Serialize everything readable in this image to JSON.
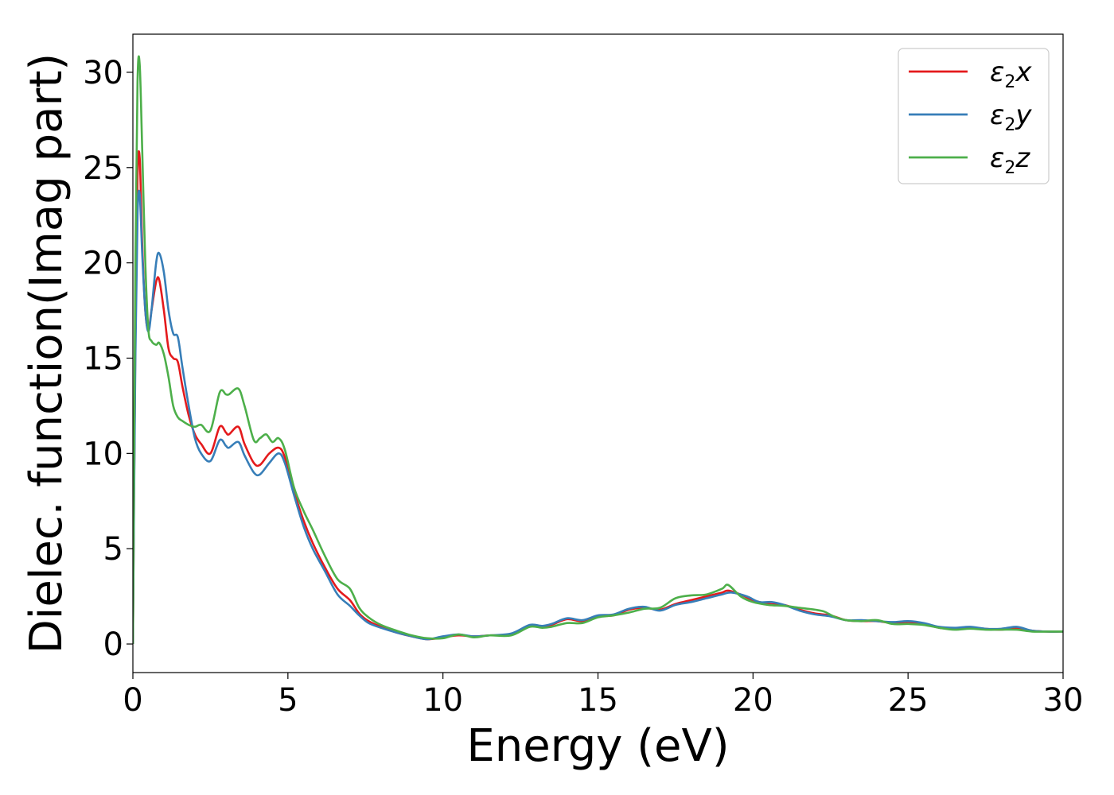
{
  "chart_data": {
    "type": "line",
    "title": "",
    "xlabel": "Energy (eV)",
    "ylabel": "Dielec. function(Imag part)",
    "xlim": [
      0,
      30
    ],
    "ylim": [
      -1.5,
      32
    ],
    "xticks": [
      "0",
      "5",
      "10",
      "15",
      "20",
      "25",
      "30"
    ],
    "yticks": [
      "0",
      "5",
      "10",
      "15",
      "20",
      "25",
      "30"
    ],
    "grid": false,
    "legend_position": "top-right",
    "series": [
      {
        "name": "x",
        "symbol": "ε",
        "subscript": "2",
        "suffix": "x",
        "color": "#e41a1c",
        "points": [
          [
            0,
            0
          ],
          [
            0.08,
            16
          ],
          [
            0.15,
            24.5
          ],
          [
            0.22,
            25.5
          ],
          [
            0.3,
            21
          ],
          [
            0.4,
            17.5
          ],
          [
            0.5,
            16.5
          ],
          [
            0.6,
            17.5
          ],
          [
            0.75,
            19
          ],
          [
            0.85,
            19.1
          ],
          [
            1.0,
            17.5
          ],
          [
            1.15,
            15.5
          ],
          [
            1.3,
            15
          ],
          [
            1.45,
            14.8
          ],
          [
            1.6,
            13.5
          ],
          [
            1.8,
            12
          ],
          [
            2.0,
            11
          ],
          [
            2.2,
            10.5
          ],
          [
            2.5,
            10
          ],
          [
            2.8,
            11.4
          ],
          [
            3.0,
            11.1
          ],
          [
            3.1,
            11
          ],
          [
            3.4,
            11.4
          ],
          [
            3.6,
            10.5
          ],
          [
            3.9,
            9.5
          ],
          [
            4.1,
            9.4
          ],
          [
            4.4,
            10
          ],
          [
            4.7,
            10.3
          ],
          [
            4.9,
            9.8
          ],
          [
            5.2,
            8
          ],
          [
            5.5,
            6.5
          ],
          [
            5.8,
            5.3
          ],
          [
            6.2,
            4
          ],
          [
            6.6,
            2.9
          ],
          [
            7.0,
            2.3
          ],
          [
            7.3,
            1.6
          ],
          [
            7.6,
            1.2
          ],
          [
            8.0,
            0.9
          ],
          [
            8.5,
            0.6
          ],
          [
            9.0,
            0.4
          ],
          [
            9.5,
            0.25
          ],
          [
            10.0,
            0.35
          ],
          [
            10.5,
            0.45
          ],
          [
            11.0,
            0.4
          ],
          [
            11.5,
            0.45
          ],
          [
            12.2,
            0.5
          ],
          [
            12.8,
            0.95
          ],
          [
            13.2,
            0.9
          ],
          [
            13.5,
            1.0
          ],
          [
            14.0,
            1.3
          ],
          [
            14.5,
            1.2
          ],
          [
            15.0,
            1.45
          ],
          [
            15.5,
            1.5
          ],
          [
            16.0,
            1.8
          ],
          [
            16.5,
            1.9
          ],
          [
            17.0,
            1.8
          ],
          [
            17.5,
            2.1
          ],
          [
            18.0,
            2.3
          ],
          [
            18.5,
            2.5
          ],
          [
            19.0,
            2.7
          ],
          [
            19.2,
            2.8
          ],
          [
            19.6,
            2.6
          ],
          [
            20.0,
            2.3
          ],
          [
            20.5,
            2.1
          ],
          [
            21.0,
            2.05
          ],
          [
            21.5,
            1.8
          ],
          [
            22.0,
            1.6
          ],
          [
            22.5,
            1.5
          ],
          [
            23.0,
            1.25
          ],
          [
            23.5,
            1.2
          ],
          [
            24.0,
            1.2
          ],
          [
            24.5,
            1.1
          ],
          [
            25.0,
            1.15
          ],
          [
            25.5,
            1.05
          ],
          [
            26.0,
            0.85
          ],
          [
            26.5,
            0.8
          ],
          [
            27.0,
            0.85
          ],
          [
            27.5,
            0.8
          ],
          [
            28.0,
            0.75
          ],
          [
            28.5,
            0.85
          ],
          [
            29.0,
            0.7
          ],
          [
            29.5,
            0.65
          ],
          [
            30.0,
            0.65
          ]
        ]
      },
      {
        "name": "y",
        "symbol": "ε",
        "subscript": "2",
        "suffix": "y",
        "color": "#377eb8",
        "points": [
          [
            0,
            0
          ],
          [
            0.08,
            15
          ],
          [
            0.15,
            22.5
          ],
          [
            0.22,
            23.6
          ],
          [
            0.3,
            20.5
          ],
          [
            0.4,
            17.5
          ],
          [
            0.5,
            16.4
          ],
          [
            0.6,
            17.5
          ],
          [
            0.75,
            20
          ],
          [
            0.85,
            20.5
          ],
          [
            1.0,
            19.5
          ],
          [
            1.15,
            17.5
          ],
          [
            1.3,
            16.3
          ],
          [
            1.45,
            16.1
          ],
          [
            1.6,
            14.5
          ],
          [
            1.8,
            12.5
          ],
          [
            2.0,
            10.8
          ],
          [
            2.2,
            10
          ],
          [
            2.5,
            9.6
          ],
          [
            2.8,
            10.7
          ],
          [
            3.0,
            10.4
          ],
          [
            3.1,
            10.3
          ],
          [
            3.4,
            10.6
          ],
          [
            3.6,
            9.9
          ],
          [
            3.9,
            9
          ],
          [
            4.1,
            8.9
          ],
          [
            4.4,
            9.5
          ],
          [
            4.7,
            10
          ],
          [
            4.9,
            9.5
          ],
          [
            5.2,
            7.8
          ],
          [
            5.5,
            6.2
          ],
          [
            5.8,
            5
          ],
          [
            6.2,
            3.8
          ],
          [
            6.6,
            2.6
          ],
          [
            7.0,
            2.0
          ],
          [
            7.3,
            1.5
          ],
          [
            7.6,
            1.1
          ],
          [
            8.0,
            0.85
          ],
          [
            8.5,
            0.6
          ],
          [
            9.0,
            0.4
          ],
          [
            9.5,
            0.25
          ],
          [
            10.0,
            0.4
          ],
          [
            10.5,
            0.5
          ],
          [
            11.0,
            0.4
          ],
          [
            11.5,
            0.45
          ],
          [
            12.2,
            0.55
          ],
          [
            12.8,
            1.0
          ],
          [
            13.2,
            0.95
          ],
          [
            13.5,
            1.05
          ],
          [
            14.0,
            1.35
          ],
          [
            14.5,
            1.25
          ],
          [
            15.0,
            1.5
          ],
          [
            15.5,
            1.55
          ],
          [
            16.0,
            1.85
          ],
          [
            16.5,
            1.95
          ],
          [
            17.0,
            1.75
          ],
          [
            17.5,
            2.05
          ],
          [
            18.0,
            2.2
          ],
          [
            18.5,
            2.4
          ],
          [
            19.0,
            2.6
          ],
          [
            19.3,
            2.7
          ],
          [
            19.8,
            2.5
          ],
          [
            20.2,
            2.2
          ],
          [
            20.6,
            2.2
          ],
          [
            21.0,
            2.05
          ],
          [
            21.5,
            1.75
          ],
          [
            22.0,
            1.55
          ],
          [
            22.5,
            1.45
          ],
          [
            23.0,
            1.25
          ],
          [
            23.5,
            1.25
          ],
          [
            24.0,
            1.2
          ],
          [
            24.5,
            1.15
          ],
          [
            25.0,
            1.2
          ],
          [
            25.5,
            1.1
          ],
          [
            26.0,
            0.9
          ],
          [
            26.5,
            0.85
          ],
          [
            27.0,
            0.9
          ],
          [
            27.5,
            0.8
          ],
          [
            28.0,
            0.8
          ],
          [
            28.5,
            0.9
          ],
          [
            29.0,
            0.7
          ],
          [
            29.5,
            0.65
          ],
          [
            30.0,
            0.65
          ]
        ]
      },
      {
        "name": "z",
        "symbol": "ε",
        "subscript": "2",
        "suffix": "z",
        "color": "#4daf4a",
        "points": [
          [
            0,
            0
          ],
          [
            0.08,
            20
          ],
          [
            0.15,
            29.5
          ],
          [
            0.22,
            30.4
          ],
          [
            0.3,
            26
          ],
          [
            0.4,
            20
          ],
          [
            0.5,
            16.5
          ],
          [
            0.6,
            15.9
          ],
          [
            0.75,
            15.7
          ],
          [
            0.85,
            15.8
          ],
          [
            1.0,
            15.2
          ],
          [
            1.15,
            14
          ],
          [
            1.3,
            12.5
          ],
          [
            1.45,
            11.9
          ],
          [
            1.6,
            11.7
          ],
          [
            1.8,
            11.5
          ],
          [
            2.0,
            11.4
          ],
          [
            2.2,
            11.5
          ],
          [
            2.5,
            11.2
          ],
          [
            2.8,
            13.2
          ],
          [
            3.0,
            13.1
          ],
          [
            3.1,
            13.1
          ],
          [
            3.4,
            13.4
          ],
          [
            3.6,
            12.5
          ],
          [
            3.9,
            10.7
          ],
          [
            4.1,
            10.8
          ],
          [
            4.3,
            11
          ],
          [
            4.5,
            10.6
          ],
          [
            4.7,
            10.8
          ],
          [
            4.9,
            10.2
          ],
          [
            5.2,
            8.2
          ],
          [
            5.5,
            7
          ],
          [
            5.8,
            6
          ],
          [
            6.2,
            4.6
          ],
          [
            6.6,
            3.4
          ],
          [
            7.0,
            2.9
          ],
          [
            7.3,
            1.9
          ],
          [
            7.6,
            1.4
          ],
          [
            8.0,
            1.0
          ],
          [
            8.5,
            0.7
          ],
          [
            9.0,
            0.45
          ],
          [
            9.5,
            0.3
          ],
          [
            10.0,
            0.3
          ],
          [
            10.5,
            0.5
          ],
          [
            11.0,
            0.35
          ],
          [
            11.5,
            0.45
          ],
          [
            12.2,
            0.45
          ],
          [
            12.8,
            0.9
          ],
          [
            13.2,
            0.85
          ],
          [
            13.5,
            0.9
          ],
          [
            14.0,
            1.1
          ],
          [
            14.5,
            1.1
          ],
          [
            15.0,
            1.4
          ],
          [
            15.5,
            1.5
          ],
          [
            16.0,
            1.65
          ],
          [
            16.5,
            1.85
          ],
          [
            17.0,
            1.9
          ],
          [
            17.5,
            2.4
          ],
          [
            18.0,
            2.55
          ],
          [
            18.5,
            2.6
          ],
          [
            19.0,
            2.9
          ],
          [
            19.2,
            3.1
          ],
          [
            19.6,
            2.5
          ],
          [
            20.0,
            2.2
          ],
          [
            20.5,
            2.05
          ],
          [
            21.0,
            2.0
          ],
          [
            21.5,
            1.9
          ],
          [
            22.0,
            1.8
          ],
          [
            22.3,
            1.7
          ],
          [
            22.6,
            1.45
          ],
          [
            23.0,
            1.25
          ],
          [
            23.5,
            1.2
          ],
          [
            24.0,
            1.25
          ],
          [
            24.5,
            1.05
          ],
          [
            25.0,
            1.05
          ],
          [
            25.5,
            1.0
          ],
          [
            26.0,
            0.85
          ],
          [
            26.5,
            0.75
          ],
          [
            27.0,
            0.8
          ],
          [
            27.5,
            0.75
          ],
          [
            28.0,
            0.75
          ],
          [
            28.5,
            0.75
          ],
          [
            29.0,
            0.65
          ],
          [
            29.5,
            0.65
          ],
          [
            30.0,
            0.65
          ]
        ]
      }
    ]
  }
}
